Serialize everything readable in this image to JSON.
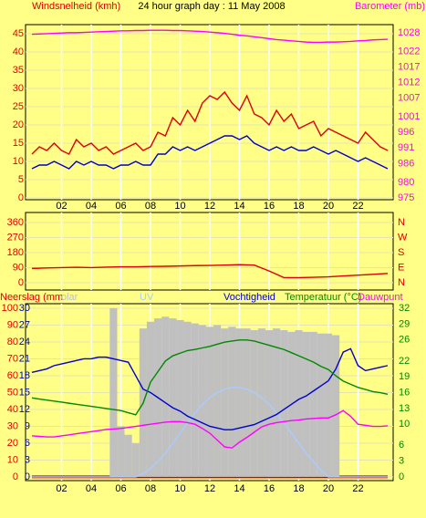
{
  "chart_data": [
    {
      "type": "line",
      "title": "24 hour graph day : 11 May 2008",
      "ylabel": "Windsnelheid (kmh)",
      "y2label": "Barometer (mb)",
      "x": [
        0,
        0.5,
        1,
        1.5,
        2,
        2.5,
        3,
        3.5,
        4,
        4.5,
        5,
        5.5,
        6,
        6.5,
        7,
        7.5,
        8,
        8.5,
        9,
        9.5,
        10,
        10.5,
        11,
        11.5,
        12,
        12.5,
        13,
        13.5,
        14,
        14.5,
        15,
        15.5,
        16,
        16.5,
        17,
        17.5,
        18,
        18.5,
        19,
        19.5,
        20,
        20.5,
        21,
        21.5,
        22,
        22.5,
        23,
        23.5,
        24
      ],
      "xlim": [
        0,
        24
      ],
      "xticks": [
        {
          "value": 2,
          "label": "02"
        },
        {
          "value": 4,
          "label": "04"
        },
        {
          "value": 6,
          "label": "06"
        },
        {
          "value": 8,
          "label": "08"
        },
        10,
        12,
        14,
        16,
        18,
        20,
        22
      ],
      "ylim": [
        -0.5,
        47.5
      ],
      "yticks": [
        0,
        5,
        10,
        15,
        20,
        25,
        30,
        35,
        40,
        45
      ],
      "y2lim": [
        974.4,
        1030.6
      ],
      "y2ticks": [
        975,
        980,
        986,
        991,
        996,
        1001,
        1007,
        1012,
        1017,
        1022,
        1028
      ],
      "grid": true,
      "series": [
        {
          "color": "#0000cc",
          "values": [
            8,
            9,
            9,
            10,
            9,
            8,
            10,
            9,
            10,
            9,
            9,
            8,
            9,
            9,
            10,
            9,
            9,
            12,
            12,
            14,
            13,
            14,
            13,
            14,
            15,
            16,
            17,
            17,
            16,
            17,
            15,
            14,
            13,
            14,
            13,
            14,
            13,
            13,
            14,
            13,
            12,
            13,
            12,
            11,
            10,
            11,
            10,
            9,
            8
          ]
        },
        {
          "color": "#dd0000",
          "values": [
            12,
            14,
            13,
            15,
            13,
            12,
            16,
            14,
            15,
            13,
            14,
            12,
            13,
            14,
            15,
            13,
            14,
            18,
            17,
            22,
            20,
            24,
            21,
            26,
            28,
            27,
            29,
            26,
            24,
            28,
            23,
            22,
            20,
            24,
            21,
            23,
            19,
            20,
            21,
            17,
            19,
            18,
            17,
            16,
            15,
            18,
            16,
            14,
            13
          ]
        },
        {
          "color": "#ff00ff",
          "axis": "y2",
          "values": [
            1027.5,
            1027.6,
            1027.7,
            1027.8,
            1027.9,
            1028,
            1028,
            1028.1,
            1028.2,
            1028.3,
            1028.4,
            1028.5,
            1028.6,
            1028.6,
            1028.7,
            1028.7,
            1028.8,
            1028.8,
            1028.8,
            1028.7,
            1028.7,
            1028.6,
            1028.5,
            1028.4,
            1028.2,
            1028,
            1027.8,
            1027.5,
            1027.2,
            1027,
            1026.7,
            1026.4,
            1026.1,
            1025.8,
            1025.6,
            1025.4,
            1025.2,
            1025,
            1024.9,
            1024.9,
            1025,
            1025,
            1025.1,
            1025.2,
            1025.4,
            1025.5,
            1025.7,
            1025.8,
            1025.9
          ]
        }
      ]
    },
    {
      "type": "line",
      "x": [
        0,
        1,
        2,
        3,
        4,
        5,
        6,
        7,
        8,
        9,
        10,
        11,
        12,
        13,
        14,
        15,
        16,
        17,
        18,
        19,
        20,
        21,
        22,
        23,
        24
      ],
      "xlim": [
        0,
        24
      ],
      "xticks": [
        2,
        4,
        6,
        8,
        10,
        12,
        14,
        16,
        18,
        20,
        22
      ],
      "ylim": [
        -44,
        420
      ],
      "yticks": [
        0,
        90,
        180,
        270,
        360
      ],
      "y2lim": [
        -44,
        420
      ],
      "y2ticks": [
        {
          "value": 360,
          "label": "N"
        },
        {
          "value": 270,
          "label": "W"
        },
        {
          "value": 180,
          "label": "S"
        },
        {
          "value": 90,
          "label": "E"
        },
        {
          "value": 0,
          "label": "N"
        }
      ],
      "grid": true,
      "series": [
        {
          "color": "#dd0000",
          "values": [
            85,
            88,
            90,
            92,
            90,
            93,
            95,
            95,
            97,
            98,
            100,
            102,
            103,
            105,
            108,
            105,
            70,
            30,
            30,
            32,
            35,
            40,
            45,
            50,
            55
          ]
        }
      ]
    },
    {
      "type": "line",
      "x": [
        0,
        0.5,
        1,
        1.5,
        2,
        2.5,
        3,
        3.5,
        4,
        4.5,
        5,
        5.5,
        6,
        6.5,
        7,
        7.5,
        8,
        8.5,
        9,
        9.5,
        10,
        10.5,
        11,
        11.5,
        12,
        12.5,
        13,
        13.5,
        14,
        14.5,
        15,
        15.5,
        16,
        16.5,
        17,
        17.5,
        18,
        18.5,
        19,
        19.5,
        20,
        20.5,
        21,
        21.5,
        22,
        22.5,
        23,
        23.5,
        24
      ],
      "xlim": [
        0,
        24
      ],
      "xticks": [
        {
          "value": 2,
          "label": "02"
        },
        {
          "value": 4,
          "label": "04"
        },
        {
          "value": 6,
          "label": "06"
        },
        {
          "value": 8,
          "label": "08"
        },
        10,
        12,
        14,
        16,
        18,
        20,
        22
      ],
      "ylim": [
        -2.2,
        102.7
      ],
      "yticks": [
        0,
        10,
        20,
        30,
        40,
        50,
        60,
        70,
        80,
        90,
        100
      ],
      "y3lim": [
        -0.66,
        30.8
      ],
      "y3ticks": [
        0,
        3,
        6,
        9,
        12,
        15,
        18,
        21,
        24,
        27,
        30
      ],
      "y2lim": [
        -0.7,
        32.9
      ],
      "y2ticks": [
        0,
        3,
        6,
        10,
        13,
        16,
        19,
        22,
        26,
        29,
        32
      ],
      "grid": true,
      "series": [
        {
          "name": "Neerslag (mm",
          "color": "#dd0000",
          "axis": "y3",
          "values": [
            0,
            0,
            0,
            0,
            0,
            0,
            0,
            0,
            0,
            0,
            0,
            0,
            0,
            0,
            0,
            0,
            0,
            0,
            0,
            0,
            0,
            0,
            0,
            0,
            0,
            0,
            0,
            0,
            0,
            0,
            0,
            0,
            0,
            0,
            0,
            0,
            0,
            0,
            0,
            0,
            0,
            0,
            0,
            0,
            0,
            0,
            0,
            0,
            0
          ]
        },
        {
          "name": "olar",
          "color": "#c0c0c0",
          "style": "bar",
          "values": [
            0,
            0,
            0,
            0,
            0,
            0,
            0,
            0,
            0,
            0,
            0,
            100,
            30,
            25,
            20,
            88,
            92,
            94,
            95,
            94,
            93,
            92,
            91,
            90,
            89,
            90,
            88,
            89,
            88,
            88,
            87,
            88,
            87,
            88,
            87,
            86,
            87,
            86,
            86,
            85,
            85,
            84,
            0,
            0,
            0,
            0,
            0,
            0,
            0
          ]
        },
        {
          "name": "UV",
          "color": "#aaccff",
          "values": [
            0,
            0,
            0,
            0,
            0,
            0,
            0,
            0,
            0,
            0,
            0,
            0,
            0,
            0,
            0,
            2,
            5,
            9,
            14,
            20,
            26,
            32,
            38,
            43,
            47,
            50,
            52,
            53,
            53,
            52,
            50,
            47,
            43,
            38,
            32,
            26,
            20,
            14,
            9,
            4,
            0,
            0,
            0,
            0,
            0,
            0,
            0,
            0,
            0
          ]
        },
        {
          "name": "Vochtigheid",
          "color": "#0000cc",
          "values": [
            62,
            63,
            64,
            66,
            67,
            68,
            69,
            70,
            70,
            71,
            71,
            70,
            69,
            68,
            60,
            52,
            50,
            47,
            44,
            41,
            39,
            36,
            34,
            32,
            30,
            29,
            28,
            28,
            29,
            30,
            31,
            33,
            35,
            37,
            40,
            43,
            46,
            48,
            51,
            54,
            57,
            64,
            74,
            76,
            66,
            63,
            64,
            65,
            66
          ]
        },
        {
          "name": "Temperatuur (°C)",
          "color": "#008800",
          "axis": "y2",
          "values": [
            15,
            14.8,
            14.6,
            14.4,
            14.2,
            14,
            13.8,
            13.6,
            13.4,
            13.2,
            13,
            12.8,
            12.6,
            12.2,
            11.8,
            14,
            18,
            20,
            22,
            23,
            23.5,
            24,
            24.2,
            24.5,
            24.8,
            25.2,
            25.6,
            25.8,
            26,
            26,
            25.8,
            25.4,
            25,
            24.6,
            24.2,
            23.6,
            23,
            22.4,
            21.8,
            21,
            20.4,
            19.2,
            18.2,
            17.6,
            17,
            16.6,
            16.2,
            16,
            15.7
          ]
        },
        {
          "name": "Dauwpunt",
          "color": "#ff00ff",
          "axis": "y2",
          "values": [
            7.8,
            7.7,
            7.6,
            7.6,
            7.8,
            8,
            8.2,
            8.4,
            8.6,
            8.8,
            9,
            9.1,
            9.2,
            9.4,
            9.6,
            9.8,
            10,
            10.2,
            10.4,
            10.5,
            10.5,
            10.3,
            10,
            9.2,
            8.3,
            7,
            5.7,
            5.5,
            6.6,
            7.5,
            8.5,
            9.5,
            10,
            10.3,
            10.5,
            10.7,
            10.8,
            11,
            11.1,
            11.2,
            11.2,
            11.8,
            12.6,
            11.5,
            10,
            9.8,
            9.6,
            9.6,
            9.7
          ]
        }
      ]
    }
  ]
}
